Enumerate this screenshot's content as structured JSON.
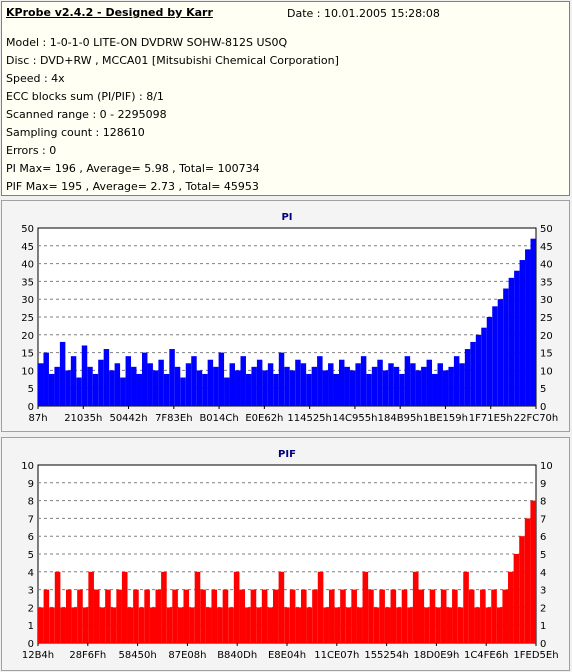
{
  "info": {
    "title": "KProbe v2.4.2 - Designed by Karr",
    "date": "Date :  10.01.2005 15:28:08",
    "lines": [
      "Model : 1-0-1-0 LITE-ON DVDRW SOHW-812S  US0Q",
      "Disc : DVD+RW , MCCA01 [Mitsubishi Chemical Corporation]",
      "Speed : 4x",
      "ECC blocks sum (PI/PIF) : 8/1",
      "Scanned range : 0 - 2295098",
      "Sampling count : 128610",
      "Errors : 0",
      "PI Max= 196 , Average= 5.98 , Total= 100734",
      "PIF Max= 195 , Average= 2.73 , Total= 45953"
    ]
  },
  "chart_data": [
    {
      "type": "area",
      "title": "PI",
      "color": "#0000ff",
      "ylim": [
        0,
        50
      ],
      "yticks": [
        0,
        5,
        10,
        15,
        20,
        25,
        30,
        35,
        40,
        45,
        50
      ],
      "xticks": [
        "87h",
        "21035h",
        "50442h",
        "7F83Eh",
        "B014Ch",
        "E0E62h",
        "114525h",
        "14C955h",
        "184B95h",
        "1BE159h",
        "1F71E5h",
        "22FC70h"
      ],
      "grid": true,
      "series": [
        {
          "values": [
            12,
            15,
            9,
            11,
            18,
            10,
            14,
            8,
            17,
            11,
            9,
            13,
            16,
            10,
            12,
            8,
            14,
            11,
            9,
            15,
            12,
            10,
            13,
            9,
            16,
            11,
            8,
            12,
            14,
            10,
            9,
            13,
            11,
            15,
            8,
            12,
            10,
            14,
            9,
            11,
            13,
            10,
            12,
            9,
            15,
            11,
            10,
            13,
            12,
            9,
            11,
            14,
            10,
            12,
            9,
            13,
            11,
            10,
            12,
            14,
            9,
            11,
            13,
            10,
            12,
            11,
            9,
            14,
            12,
            10,
            11,
            13,
            9,
            12,
            10,
            11,
            14,
            12,
            16,
            18,
            20,
            22,
            25,
            28,
            30,
            33,
            36,
            38,
            41,
            44,
            47
          ]
        }
      ]
    },
    {
      "type": "area",
      "title": "PIF",
      "color": "#ff0000",
      "ylim": [
        0,
        10
      ],
      "yticks": [
        0,
        1,
        2,
        3,
        4,
        5,
        6,
        7,
        8,
        9,
        10
      ],
      "xticks": [
        "12B4h",
        "28F6Fh",
        "58450h",
        "87E08h",
        "B840Dh",
        "E8E04h",
        "11CE07h",
        "155254h",
        "18D0E9h",
        "1C4FE6h",
        "1FED5Eh"
      ],
      "grid": true,
      "series": [
        {
          "values": [
            2,
            3,
            2,
            4,
            2,
            3,
            2,
            3,
            2,
            4,
            3,
            2,
            3,
            2,
            3,
            4,
            2,
            3,
            2,
            3,
            2,
            3,
            4,
            2,
            3,
            2,
            3,
            2,
            4,
            3,
            2,
            3,
            2,
            3,
            2,
            4,
            3,
            2,
            3,
            2,
            3,
            2,
            3,
            4,
            2,
            3,
            2,
            3,
            2,
            3,
            4,
            2,
            3,
            2,
            3,
            2,
            3,
            2,
            4,
            3,
            2,
            3,
            2,
            3,
            2,
            3,
            2,
            4,
            3,
            2,
            3,
            2,
            3,
            2,
            3,
            2,
            4,
            3,
            2,
            3,
            2,
            3,
            2,
            3,
            4,
            5,
            6,
            7,
            8
          ]
        }
      ]
    }
  ]
}
